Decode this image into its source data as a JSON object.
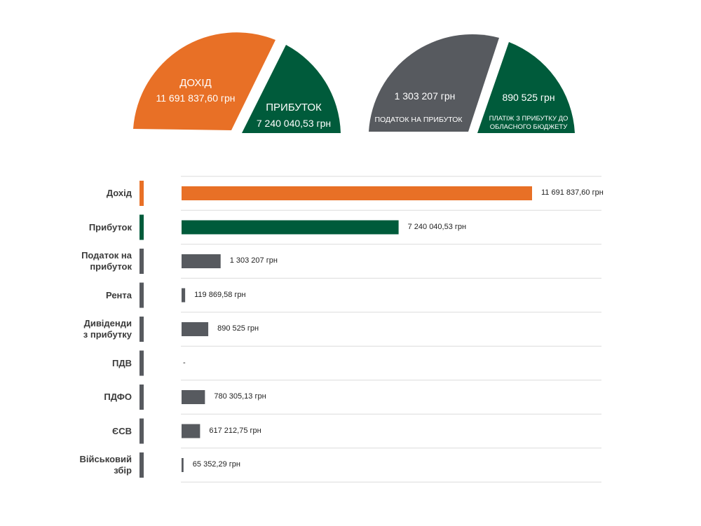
{
  "colors": {
    "orange": "#e87026",
    "green": "#005b3b",
    "gray": "#575a5f",
    "grid": "#dcdcdc"
  },
  "summary": {
    "left": {
      "income_label": "ДОХІД",
      "income_value": "11 691 837,60 грн",
      "profit_label": "ПРИБУТОК",
      "profit_value": "7 240 040,53 грн"
    },
    "right": {
      "tax_value": "1 303 207 грн",
      "tax_label": "ПОДАТОК НА ПРИБУТОК",
      "payment_value": "890 525 грн",
      "payment_label_line1": "ПЛАТІЖ З ПРИБУТКУ ДО",
      "payment_label_line2": "ОБЛАСНОГО БЮДЖЕТУ"
    }
  },
  "chart_data": {
    "type": "bar",
    "orientation": "horizontal",
    "categories": [
      [
        "Дохід"
      ],
      [
        "Прибуток"
      ],
      [
        "Податок на",
        "прибуток"
      ],
      [
        "Рента"
      ],
      [
        "Дивіденди",
        "з прибутку"
      ],
      [
        "ПДВ"
      ],
      [
        "ПДФО"
      ],
      [
        "ЄСВ"
      ],
      [
        "Військовий",
        "збір"
      ]
    ],
    "values": [
      11691837.6,
      7240040.53,
      1303207,
      119869.58,
      890525,
      0,
      780305.13,
      617212.75,
      65352.29
    ],
    "value_labels": [
      "11 691 837,60 грн",
      "7 240 040,53 грн",
      "1 303 207 грн",
      "119 869,58 грн",
      "890 525 грн",
      "-",
      "780 305,13 грн",
      "617 212,75 грн",
      "65 352,29 грн"
    ],
    "bar_colors": [
      "#e87026",
      "#005b3b",
      "#575a5f",
      "#575a5f",
      "#575a5f",
      "#575a5f",
      "#575a5f",
      "#575a5f",
      "#575a5f"
    ],
    "xlim": [
      0,
      11691837.6
    ],
    "grid": true
  }
}
